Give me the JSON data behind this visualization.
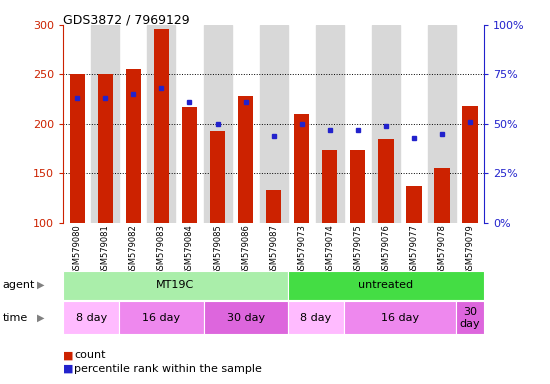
{
  "title": "GDS3872 / 7969129",
  "samples": [
    "GSM579080",
    "GSM579081",
    "GSM579082",
    "GSM579083",
    "GSM579084",
    "GSM579085",
    "GSM579086",
    "GSM579087",
    "GSM579073",
    "GSM579074",
    "GSM579075",
    "GSM579076",
    "GSM579077",
    "GSM579078",
    "GSM579079"
  ],
  "counts": [
    250,
    250,
    255,
    296,
    217,
    193,
    228,
    133,
    210,
    174,
    174,
    185,
    137,
    155,
    218
  ],
  "percentiles": [
    63,
    63,
    65,
    68,
    61,
    50,
    61,
    44,
    50,
    47,
    47,
    49,
    43,
    45,
    51
  ],
  "ymin": 100,
  "ymax": 300,
  "yticks_left": [
    100,
    150,
    200,
    250,
    300
  ],
  "yticks_right": [
    0,
    25,
    50,
    75,
    100
  ],
  "bar_color": "#cc2200",
  "dot_color": "#2222cc",
  "agent_groups": [
    {
      "label": "MT19C",
      "start": 0,
      "end": 8,
      "color": "#aaeeaa"
    },
    {
      "label": "untreated",
      "start": 8,
      "end": 15,
      "color": "#44dd44"
    }
  ],
  "time_groups": [
    {
      "label": "8 day",
      "start": 0,
      "end": 2,
      "color": "#ffbbff"
    },
    {
      "label": "16 day",
      "start": 2,
      "end": 5,
      "color": "#ee88ee"
    },
    {
      "label": "30 day",
      "start": 5,
      "end": 8,
      "color": "#dd66dd"
    },
    {
      "label": "8 day",
      "start": 8,
      "end": 10,
      "color": "#ffbbff"
    },
    {
      "label": "16 day",
      "start": 10,
      "end": 14,
      "color": "#ee88ee"
    },
    {
      "label": "30\nday",
      "start": 14,
      "end": 15,
      "color": "#dd66dd"
    }
  ],
  "legend_count_label": "count",
  "legend_percentile_label": "percentile rank within the sample",
  "col_bg_color": "#d8d8d8",
  "plot_bg_color": "#ffffff"
}
